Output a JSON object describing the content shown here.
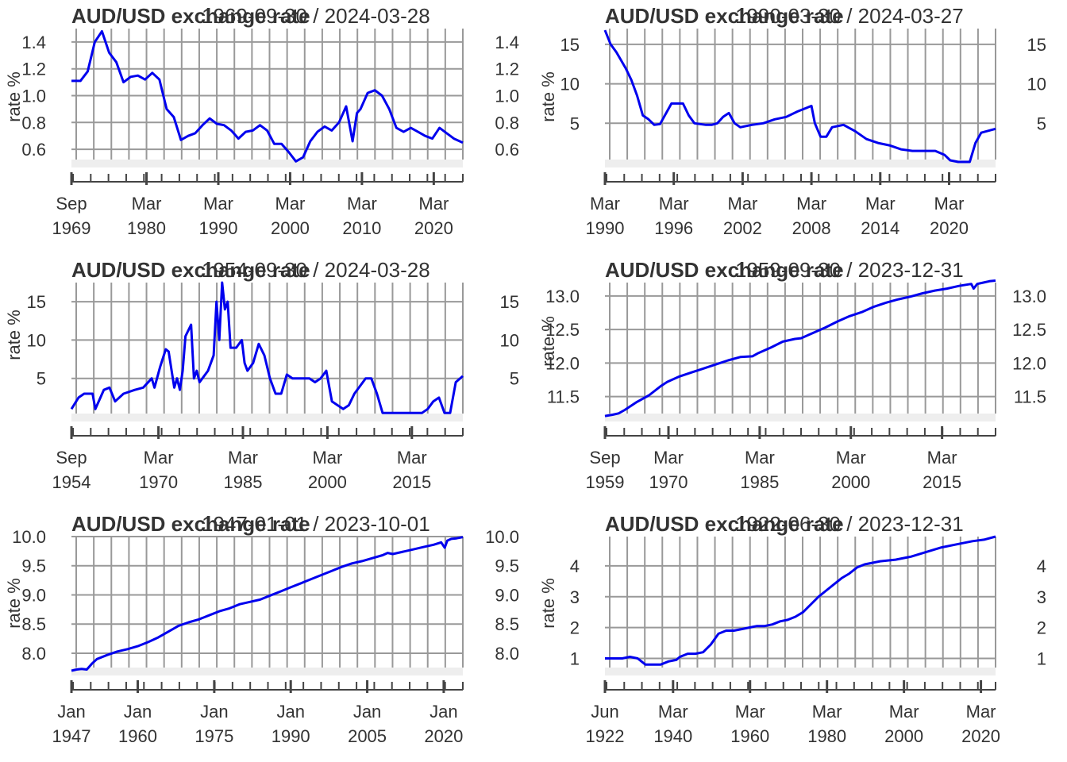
{
  "colors": {
    "line": "#0000ee",
    "grid": "#999999",
    "axis": "#444444",
    "text": "#333333",
    "band": "#eeeeee"
  },
  "chart_data": [
    {
      "type": "line",
      "title": "AUD/USD exchange rate",
      "range_label": "1969-09-30 / 2024-03-28",
      "ylabel": "rate %",
      "ylim": [
        0.5,
        1.5
      ],
      "y_ticks": [
        "0.6",
        "0.8",
        "1.0",
        "1.2",
        "1.4"
      ],
      "y_tick_values": [
        0.6,
        0.8,
        1.0,
        1.2,
        1.4
      ],
      "xlim": [
        1969.75,
        2024.25
      ],
      "x_ticks": [
        [
          "Sep",
          "1969"
        ],
        [
          "Mar",
          "1980"
        ],
        [
          "Mar",
          "1990"
        ],
        [
          "Mar",
          "2000"
        ],
        [
          "Mar",
          "2010"
        ],
        [
          "Mar",
          "2020"
        ]
      ],
      "x_tick_values": [
        1969.75,
        1980.2,
        1990.2,
        2000.2,
        2010.2,
        2020.2
      ],
      "series": [
        {
          "x": [
            1969.75,
            1971,
            1972,
            1973,
            1974,
            1975,
            1976,
            1977,
            1978,
            1979,
            1980,
            1981,
            1982,
            1983,
            1984,
            1985,
            1986,
            1987,
            1988,
            1989,
            1990,
            1991,
            1992,
            1993,
            1994,
            1995,
            1996,
            1997,
            1998,
            1999,
            2000,
            2001,
            2002,
            2003,
            2004,
            2005,
            2006,
            2007,
            2008,
            2008.9,
            2009.5,
            2010,
            2011,
            2012,
            2013,
            2014,
            2015,
            2016,
            2017,
            2018,
            2019,
            2020,
            2021,
            2022,
            2023,
            2024.25
          ],
          "y": [
            1.11,
            1.11,
            1.18,
            1.4,
            1.48,
            1.32,
            1.25,
            1.1,
            1.14,
            1.15,
            1.12,
            1.17,
            1.12,
            0.9,
            0.84,
            0.67,
            0.7,
            0.72,
            0.78,
            0.83,
            0.79,
            0.78,
            0.74,
            0.68,
            0.73,
            0.74,
            0.78,
            0.74,
            0.64,
            0.64,
            0.58,
            0.51,
            0.54,
            0.66,
            0.73,
            0.77,
            0.74,
            0.8,
            0.92,
            0.66,
            0.87,
            0.9,
            1.02,
            1.04,
            1.0,
            0.9,
            0.76,
            0.73,
            0.76,
            0.73,
            0.7,
            0.68,
            0.76,
            0.72,
            0.68,
            0.65
          ]
        }
      ]
    },
    {
      "type": "line",
      "title": "AUD/USD exchange rate",
      "range_label": "1990-03-30 / 2024-03-27",
      "ylabel": "rate %",
      "ylim": [
        0,
        17
      ],
      "y_ticks": [
        "5",
        "10",
        "15"
      ],
      "y_tick_values": [
        5,
        10,
        15
      ],
      "xlim": [
        1990.2,
        2024.25
      ],
      "x_ticks": [
        [
          "Mar",
          "1990"
        ],
        [
          "Mar",
          "1996"
        ],
        [
          "Mar",
          "2002"
        ],
        [
          "Mar",
          "2008"
        ],
        [
          "Mar",
          "2014"
        ],
        [
          "Mar",
          "2020"
        ]
      ],
      "x_tick_values": [
        1990.2,
        1996.2,
        2002.2,
        2008.2,
        2014.2,
        2020.2
      ],
      "series": [
        {
          "x": [
            1990.2,
            1990.7,
            1991.2,
            1992,
            1992.5,
            1993,
            1993.5,
            1994,
            1994.5,
            1995,
            1996,
            1996.5,
            1997,
            1997.5,
            1998,
            1999,
            1999.5,
            2000,
            2000.5,
            2001,
            2001.5,
            2002,
            2003,
            2004,
            2005,
            2006,
            2007,
            2008.2,
            2008.5,
            2009,
            2009.5,
            2010,
            2011,
            2012,
            2013,
            2014,
            2015,
            2016,
            2017,
            2018,
            2019,
            2019.8,
            2020.3,
            2021,
            2022,
            2022.5,
            2023,
            2024.25
          ],
          "y": [
            16.8,
            15.0,
            14.0,
            12.0,
            10.5,
            8.5,
            6.0,
            5.5,
            4.8,
            4.9,
            7.5,
            7.5,
            7.5,
            6.0,
            5.0,
            4.8,
            4.8,
            5.0,
            5.8,
            6.3,
            5.0,
            4.5,
            4.8,
            5.0,
            5.5,
            5.8,
            6.5,
            7.2,
            5.0,
            3.3,
            3.3,
            4.5,
            4.8,
            4.0,
            3.0,
            2.5,
            2.2,
            1.7,
            1.5,
            1.5,
            1.5,
            1.0,
            0.3,
            0.1,
            0.1,
            2.5,
            3.8,
            4.3
          ]
        }
      ]
    },
    {
      "type": "line",
      "title": "AUD/USD exchange rate",
      "range_label": "1954-09-30 / 2024-03-28",
      "ylabel": "rate %",
      "ylim": [
        0,
        17.5
      ],
      "y_ticks": [
        "5",
        "10",
        "15"
      ],
      "y_tick_values": [
        5,
        10,
        15
      ],
      "xlim": [
        1954.75,
        2024.25
      ],
      "x_ticks": [
        [
          "Sep",
          "1954"
        ],
        [
          "Mar",
          "1970"
        ],
        [
          "Mar",
          "1985"
        ],
        [
          "Mar",
          "2000"
        ],
        [
          "Mar",
          "2015"
        ]
      ],
      "x_tick_values": [
        1954.75,
        1970.2,
        1985.2,
        2000.2,
        2015.2
      ],
      "series": [
        {
          "x": [
            1954.75,
            1956,
            1957,
            1958.5,
            1959,
            1960.5,
            1961.5,
            1962.5,
            1964,
            1966,
            1967.5,
            1969,
            1969.5,
            1970.5,
            1971.5,
            1972,
            1973,
            1973.5,
            1974,
            1974.5,
            1975,
            1976,
            1976.5,
            1977,
            1977.5,
            1978,
            1979,
            1980,
            1980.5,
            1981,
            1981.5,
            1982,
            1982.5,
            1983,
            1984,
            1985,
            1985.5,
            1986,
            1987,
            1988,
            1989,
            1990,
            1991,
            1992,
            1993,
            1994,
            1995,
            1996,
            1997,
            1998,
            1999,
            2000,
            2001,
            2002,
            2003,
            2004,
            2005,
            2006,
            2007,
            2008,
            2009,
            2010,
            2011,
            2012,
            2014,
            2016,
            2017,
            2018,
            2019,
            2020,
            2021,
            2022,
            2023,
            2024.25
          ],
          "y": [
            1.0,
            2.5,
            3.0,
            3.0,
            1.0,
            3.5,
            3.8,
            2.0,
            3.0,
            3.5,
            3.8,
            5.0,
            3.8,
            6.5,
            8.8,
            8.5,
            3.8,
            5.0,
            3.5,
            6.0,
            10.5,
            12.0,
            5.0,
            6.0,
            4.5,
            5.0,
            6.0,
            8.0,
            15.0,
            10.0,
            17.5,
            14.0,
            15.0,
            9.0,
            9.0,
            10.0,
            7.0,
            6.0,
            7.0,
            9.5,
            8.0,
            5.0,
            3.0,
            3.0,
            5.5,
            5.0,
            5.0,
            5.0,
            5.0,
            4.5,
            5.0,
            6.0,
            2.0,
            1.5,
            1.0,
            1.5,
            3.0,
            4.0,
            5.0,
            5.0,
            3.0,
            0.5,
            0.5,
            0.5,
            0.5,
            0.5,
            0.5,
            1.0,
            2.0,
            2.5,
            0.5,
            0.5,
            4.5,
            5.3
          ]
        }
      ]
    },
    {
      "type": "line",
      "title": "AUD/USD exchange rate",
      "range_label": "1959-09-30 / 2023-12-31",
      "ylabel": "rate %",
      "ylim": [
        11.2,
        13.2
      ],
      "y_ticks": [
        "11.5",
        "12.0",
        "12.5",
        "13.0"
      ],
      "y_tick_values": [
        11.5,
        12.0,
        12.5,
        13.0
      ],
      "xlim": [
        1959.75,
        2024.0
      ],
      "x_ticks": [
        [
          "Sep",
          "1959"
        ],
        [
          "Mar",
          "1970"
        ],
        [
          "Mar",
          "1985"
        ],
        [
          "Mar",
          "2000"
        ],
        [
          "Mar",
          "2015"
        ]
      ],
      "x_tick_values": [
        1959.75,
        1970.2,
        1985.2,
        2000.2,
        2015.2
      ],
      "series": [
        {
          "x": [
            1959.75,
            1961,
            1962,
            1963,
            1965,
            1967,
            1969,
            1970,
            1972,
            1974,
            1976,
            1978,
            1980,
            1982,
            1984,
            1985,
            1987,
            1989,
            1991,
            1992,
            1994,
            1996,
            1998,
            2000,
            2002,
            2004,
            2006,
            2008,
            2010,
            2012,
            2014,
            2016,
            2018,
            2020,
            2020.4,
            2021,
            2022,
            2023,
            2024.0
          ],
          "y": [
            11.21,
            11.23,
            11.25,
            11.3,
            11.42,
            11.52,
            11.66,
            11.72,
            11.8,
            11.86,
            11.92,
            11.98,
            12.04,
            12.09,
            12.1,
            12.15,
            12.23,
            12.32,
            12.36,
            12.37,
            12.45,
            12.53,
            12.62,
            12.7,
            12.76,
            12.84,
            12.9,
            12.95,
            12.99,
            13.04,
            13.08,
            13.11,
            13.15,
            13.18,
            13.11,
            13.18,
            13.2,
            13.22,
            13.23
          ]
        }
      ]
    },
    {
      "type": "line",
      "title": "AUD/USD exchange rate",
      "range_label": "1947-01-01 / 2023-10-01",
      "ylabel": "rate %",
      "ylim": [
        7.7,
        10.0
      ],
      "y_ticks": [
        "8.0",
        "8.5",
        "9.0",
        "9.5",
        "10.0"
      ],
      "y_tick_values": [
        8.0,
        8.5,
        9.0,
        9.5,
        10.0
      ],
      "xlim": [
        1947.0,
        2023.75
      ],
      "x_ticks": [
        [
          "Jan",
          "1947"
        ],
        [
          "Jan",
          "1960"
        ],
        [
          "Jan",
          "1975"
        ],
        [
          "Jan",
          "1990"
        ],
        [
          "Jan",
          "2005"
        ],
        [
          "Jan",
          "2020"
        ]
      ],
      "x_tick_values": [
        1947.0,
        1960.0,
        1975.0,
        1990.0,
        2005.0,
        2020.0
      ],
      "series": [
        {
          "x": [
            1947.0,
            1948,
            1949,
            1950,
            1951,
            1952,
            1954,
            1956,
            1958,
            1960,
            1962,
            1964,
            1966,
            1968,
            1970,
            1972,
            1974,
            1976,
            1978,
            1980,
            1982,
            1984,
            1986,
            1988,
            1990,
            1992,
            1994,
            1996,
            1998,
            2000,
            2002,
            2004,
            2006,
            2008,
            2009,
            2010,
            2012,
            2014,
            2016,
            2018,
            2019.5,
            2020.2,
            2020.7,
            2021.5,
            2022.5,
            2023.75
          ],
          "y": [
            7.7,
            7.72,
            7.73,
            7.72,
            7.82,
            7.9,
            7.97,
            8.03,
            8.07,
            8.12,
            8.19,
            8.27,
            8.37,
            8.47,
            8.53,
            8.58,
            8.65,
            8.72,
            8.77,
            8.84,
            8.88,
            8.92,
            8.99,
            9.06,
            9.13,
            9.2,
            9.27,
            9.34,
            9.41,
            9.48,
            9.54,
            9.58,
            9.63,
            9.68,
            9.72,
            9.7,
            9.74,
            9.78,
            9.82,
            9.86,
            9.9,
            9.81,
            9.93,
            9.96,
            9.97,
            9.99
          ]
        }
      ]
    },
    {
      "type": "line",
      "title": "AUD/USD exchange rate",
      "range_label": "1922-06-30 / 2023-12-31",
      "ylabel": "rate %",
      "ylim": [
        0.6,
        4.95
      ],
      "y_ticks": [
        "1",
        "2",
        "3",
        "4"
      ],
      "y_tick_values": [
        1,
        2,
        3,
        4
      ],
      "xlim": [
        1922.5,
        2024.0
      ],
      "x_ticks": [
        [
          "Jun",
          "1922"
        ],
        [
          "Mar",
          "1940"
        ],
        [
          "Mar",
          "1960"
        ],
        [
          "Mar",
          "1980"
        ],
        [
          "Mar",
          "2000"
        ],
        [
          "Mar",
          "2020"
        ]
      ],
      "x_tick_values": [
        1922.5,
        1940.2,
        1960.2,
        1980.2,
        2000.2,
        2020.2
      ],
      "series": [
        {
          "x": [
            1922.5,
            1925,
            1927,
            1929,
            1931,
            1932,
            1933,
            1935,
            1937,
            1939,
            1941,
            1942,
            1944,
            1946,
            1948,
            1950,
            1952,
            1954,
            1956,
            1958,
            1960,
            1962,
            1964,
            1966,
            1968,
            1970,
            1972,
            1974,
            1976,
            1978,
            1980,
            1982,
            1984,
            1986,
            1988,
            1990,
            1994,
            1998,
            2002,
            2006,
            2010,
            2014,
            2018,
            2021,
            2024.0
          ],
          "y": [
            1.0,
            1.0,
            1.0,
            1.05,
            1.0,
            0.9,
            0.8,
            0.8,
            0.8,
            0.9,
            0.95,
            1.05,
            1.15,
            1.15,
            1.2,
            1.45,
            1.8,
            1.9,
            1.9,
            1.95,
            2.0,
            2.05,
            2.05,
            2.1,
            2.2,
            2.25,
            2.35,
            2.5,
            2.75,
            3.0,
            3.2,
            3.4,
            3.6,
            3.75,
            3.95,
            4.05,
            4.15,
            4.2,
            4.3,
            4.45,
            4.6,
            4.7,
            4.8,
            4.85,
            4.95
          ]
        }
      ]
    }
  ]
}
